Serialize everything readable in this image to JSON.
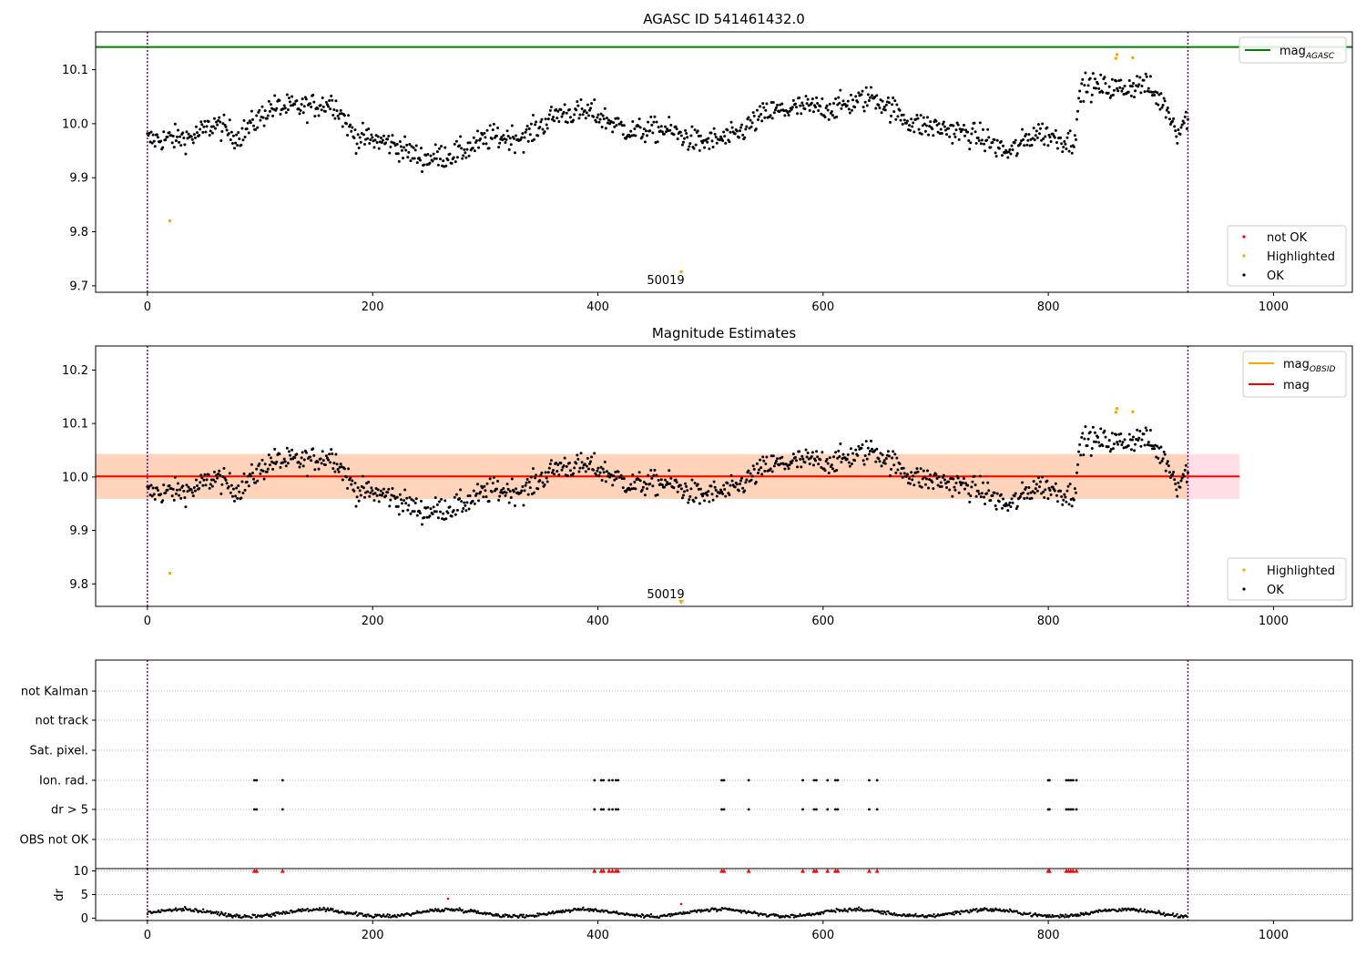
{
  "chart_data": [
    {
      "type": "scatter",
      "title": "AGASC ID 541461432.0",
      "xlabel": "",
      "ylabel": "",
      "xlim": [
        -46,
        1070
      ],
      "ylim": [
        9.688,
        10.17
      ],
      "x_ticks": [
        0,
        200,
        400,
        600,
        800,
        1000
      ],
      "y_ticks": [
        9.7,
        9.8,
        9.9,
        10.0,
        10.1
      ],
      "y_tick_labels": [
        "9.7",
        "9.8",
        "9.9",
        "10.0",
        "10.1"
      ],
      "vlines": [
        0,
        924
      ],
      "hline": {
        "name": "mag_AGASC",
        "value": 10.142,
        "color": "#008000"
      },
      "obsid_annotation": {
        "text": "50019",
        "x": 460
      },
      "legend_upper": [
        {
          "label": "mag",
          "sub": "AGASC",
          "color": "#008000",
          "kind": "line"
        }
      ],
      "legend_lower": [
        {
          "label": "not OK",
          "color": "#ff0000",
          "kind": "dot"
        },
        {
          "label": "Highlighted",
          "color": "#ffa500",
          "kind": "dot"
        },
        {
          "label": "OK",
          "color": "#000000",
          "kind": "dot"
        }
      ],
      "highlighted_points": [
        [
          20,
          9.82
        ],
        [
          474,
          9.726
        ],
        [
          860,
          10.121
        ],
        [
          861,
          10.128
        ],
        [
          875,
          10.122
        ]
      ],
      "ok_series": "generated trend 0-924, approx 9.90-10.11"
    },
    {
      "type": "scatter",
      "title": "Magnitude Estimates",
      "xlabel": "",
      "ylabel": "",
      "xlim": [
        -46,
        1070
      ],
      "ylim": [
        9.758,
        10.245
      ],
      "x_ticks": [
        0,
        200,
        400,
        600,
        800,
        1000
      ],
      "y_ticks": [
        9.8,
        9.9,
        10.0,
        10.1,
        10.2
      ],
      "y_tick_labels": [
        "9.8",
        "9.9",
        "10.0",
        "10.1",
        "10.2"
      ],
      "vlines": [
        0,
        924
      ],
      "mag_line": {
        "name": "mag",
        "value": 10.001,
        "color": "#ff0000",
        "x_range": [
          -46,
          970
        ]
      },
      "mag_band": {
        "low": 9.959,
        "high": 10.043,
        "color": "#ffc0cb"
      },
      "obsid_band": {
        "name": "mag_OBSID",
        "low": 9.959,
        "high": 10.043,
        "color": "#ffa500",
        "x_range": [
          -46,
          924
        ]
      },
      "obsid_annotation": {
        "text": "50019",
        "x": 460
      },
      "legend_upper": [
        {
          "label": "mag",
          "sub": "OBSID",
          "color": "#ffa500",
          "kind": "line"
        },
        {
          "label": "mag",
          "sub": "",
          "color": "#ff0000",
          "kind": "line"
        }
      ],
      "legend_lower": [
        {
          "label": "Highlighted",
          "color": "#ffa500",
          "kind": "dot"
        },
        {
          "label": "OK",
          "color": "#000000",
          "kind": "dot"
        }
      ],
      "highlighted_points": [
        [
          20,
          9.82
        ],
        [
          860,
          10.121
        ],
        [
          861,
          10.128
        ],
        [
          875,
          10.122
        ]
      ]
    },
    {
      "type": "scatter",
      "title": "",
      "xlabel": "",
      "ylabel": "",
      "xlim": [
        -46,
        1070
      ],
      "categories": [
        "not Kalman",
        "not track",
        "Sat. pixel.",
        "Ion. rad.",
        "dr > 5",
        "OBS not OK"
      ],
      "flag_x": [
        95,
        97,
        120,
        397,
        403,
        405,
        410,
        413,
        416,
        418,
        510,
        512,
        534,
        582,
        592,
        594,
        604,
        611,
        613,
        641,
        648,
        800,
        801,
        816,
        818,
        820,
        822,
        825
      ],
      "flag_rows": [
        "Ion. rad.",
        "dr > 5"
      ]
    },
    {
      "type": "scatter",
      "title": "",
      "xlabel": "",
      "ylabel": "dr",
      "xlim": [
        -46,
        1070
      ],
      "ylim": [
        -0.5,
        10.5
      ],
      "y_ticks": [
        0,
        5,
        10
      ],
      "y_tick_labels": [
        "0",
        "5",
        "10"
      ],
      "x_ticks": [
        0,
        200,
        400,
        600,
        800,
        1000
      ],
      "x_tick_labels": [
        "0",
        "200",
        "400",
        "600",
        "800",
        "1000"
      ],
      "red_points": [
        [
          267,
          4.1
        ],
        [
          474,
          3.0
        ]
      ],
      "capped_value": 10
    }
  ],
  "colors": {
    "ok": "#000000",
    "highlighted": "#ffa500",
    "not_ok": "#ff0000",
    "vline": "#800080",
    "grid": "#b0b0b0"
  }
}
